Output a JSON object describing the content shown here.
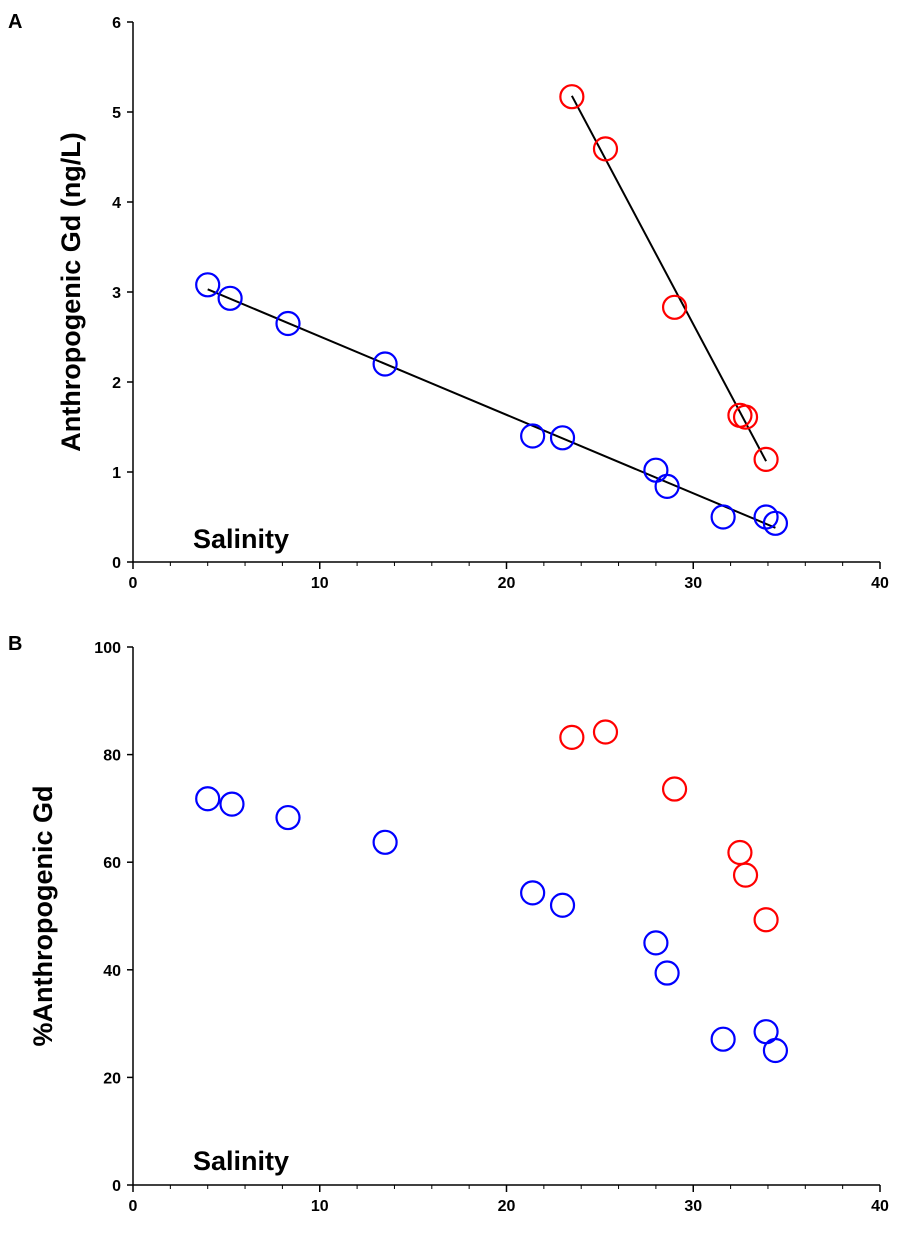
{
  "chart_data": [
    {
      "type": "scatter",
      "panel_label": "A",
      "title": "",
      "xlabel": "",
      "ylabel": "Anthropogenic Gd (ng/L)",
      "annotation": "Salinity",
      "xlim": [
        0,
        40
      ],
      "ylim": [
        0,
        6
      ],
      "x_ticks": [
        "0",
        "10",
        "20",
        "30",
        "40"
      ],
      "y_ticks": [
        "0",
        "1",
        "2",
        "3",
        "4",
        "5",
        "6"
      ],
      "grid": false,
      "colors": {
        "blue_series": "#0000ff",
        "red_series": "#ff0000",
        "line": "#000000"
      },
      "series": [
        {
          "name": "blue",
          "color": "#0000ff",
          "x": [
            4.0,
            5.2,
            8.3,
            13.5,
            21.4,
            23.0,
            28.0,
            28.6,
            31.6,
            33.9,
            34.4
          ],
          "y": [
            3.08,
            2.93,
            2.65,
            2.2,
            1.4,
            1.38,
            1.02,
            0.84,
            0.5,
            0.5,
            0.43
          ]
        },
        {
          "name": "red",
          "color": "#ff0000",
          "x": [
            23.5,
            25.3,
            29.0,
            32.5,
            32.8,
            33.9
          ],
          "y": [
            5.17,
            4.59,
            2.83,
            1.63,
            1.61,
            1.14
          ]
        }
      ],
      "trendlines": [
        {
          "series": "blue",
          "x": [
            4.0,
            34.4
          ],
          "y": [
            3.03,
            0.38
          ]
        },
        {
          "series": "red",
          "x": [
            23.5,
            33.9
          ],
          "y": [
            5.18,
            1.12
          ]
        }
      ]
    },
    {
      "type": "scatter",
      "panel_label": "B",
      "title": "",
      "xlabel": "",
      "ylabel": "%Anthropogenic Gd",
      "annotation": "Salinity",
      "xlim": [
        0,
        40
      ],
      "ylim": [
        0,
        100
      ],
      "x_ticks": [
        "0",
        "10",
        "20",
        "30",
        "40"
      ],
      "y_ticks": [
        "0",
        "20",
        "40",
        "60",
        "80",
        "100"
      ],
      "grid": false,
      "colors": {
        "blue_series": "#0000ff",
        "red_series": "#ff0000"
      },
      "series": [
        {
          "name": "blue",
          "color": "#0000ff",
          "x": [
            4.0,
            5.3,
            8.3,
            13.5,
            21.4,
            23.0,
            28.0,
            28.6,
            31.6,
            33.9,
            34.4
          ],
          "y": [
            71.8,
            70.8,
            68.3,
            63.7,
            54.3,
            52.0,
            45.0,
            39.4,
            27.1,
            28.5,
            25.0
          ]
        },
        {
          "name": "red",
          "color": "#ff0000",
          "x": [
            23.5,
            25.3,
            29.0,
            32.5,
            32.8,
            33.9
          ],
          "y": [
            83.2,
            84.2,
            73.6,
            61.8,
            57.6,
            49.3
          ]
        }
      ],
      "trendlines": []
    }
  ]
}
